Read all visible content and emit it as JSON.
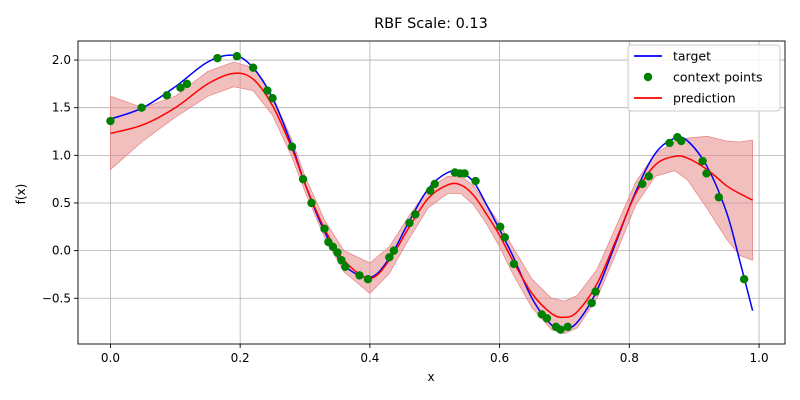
{
  "chart_data": {
    "type": "line",
    "title": "RBF Scale: 0.13",
    "xlabel": "x",
    "ylabel": "f(x)",
    "xlim": [
      -0.05,
      1.04
    ],
    "ylim": [
      -0.98,
      2.2
    ],
    "xticks": [
      0.0,
      0.2,
      0.4,
      0.6,
      0.8,
      1.0
    ],
    "xtick_labels": [
      "0.0",
      "0.2",
      "0.4",
      "0.6",
      "0.8",
      "1.0"
    ],
    "yticks": [
      -0.5,
      0.0,
      0.5,
      1.0,
      1.5,
      2.0
    ],
    "ytick_labels": [
      "−0.5",
      "0.0",
      "0.5",
      "1.0",
      "1.5",
      "2.0"
    ],
    "grid": true,
    "legend_position": "top-right",
    "colors": {
      "target": "#0000ff",
      "context": "#008000",
      "prediction": "#ff0000",
      "band": "#e88a8a"
    },
    "series": [
      {
        "name": "target",
        "kind": "line",
        "x": [
          0.0,
          0.05,
          0.1,
          0.15,
          0.19,
          0.22,
          0.25,
          0.28,
          0.3,
          0.33,
          0.36,
          0.4,
          0.43,
          0.46,
          0.49,
          0.52,
          0.54,
          0.56,
          0.58,
          0.6,
          0.62,
          0.65,
          0.68,
          0.7,
          0.72,
          0.75,
          0.78,
          0.81,
          0.84,
          0.87,
          0.89,
          0.92,
          0.95,
          0.97,
          0.99
        ],
        "y": [
          1.38,
          1.5,
          1.72,
          1.98,
          2.05,
          1.92,
          1.6,
          1.1,
          0.7,
          0.2,
          -0.15,
          -0.28,
          -0.08,
          0.3,
          0.65,
          0.82,
          0.82,
          0.72,
          0.48,
          0.22,
          -0.05,
          -0.5,
          -0.78,
          -0.82,
          -0.75,
          -0.42,
          0.1,
          0.62,
          1.02,
          1.18,
          1.15,
          0.88,
          0.4,
          -0.1,
          -0.63
        ]
      },
      {
        "name": "prediction",
        "kind": "line",
        "x": [
          0.0,
          0.05,
          0.1,
          0.15,
          0.19,
          0.22,
          0.25,
          0.28,
          0.3,
          0.33,
          0.36,
          0.4,
          0.43,
          0.46,
          0.49,
          0.52,
          0.54,
          0.56,
          0.58,
          0.6,
          0.62,
          0.65,
          0.68,
          0.7,
          0.72,
          0.75,
          0.78,
          0.81,
          0.84,
          0.87,
          0.89,
          0.92,
          0.95,
          0.97,
          0.99
        ],
        "y": [
          1.23,
          1.32,
          1.5,
          1.75,
          1.86,
          1.8,
          1.52,
          1.07,
          0.7,
          0.23,
          -0.1,
          -0.29,
          -0.1,
          0.24,
          0.55,
          0.69,
          0.69,
          0.58,
          0.38,
          0.16,
          -0.1,
          -0.45,
          -0.66,
          -0.7,
          -0.64,
          -0.35,
          0.12,
          0.6,
          0.9,
          0.99,
          0.97,
          0.85,
          0.68,
          0.6,
          0.53
        ]
      }
    ],
    "band": {
      "name": "uncertainty",
      "x": [
        0.0,
        0.05,
        0.1,
        0.15,
        0.19,
        0.22,
        0.25,
        0.28,
        0.3,
        0.33,
        0.36,
        0.4,
        0.43,
        0.46,
        0.49,
        0.52,
        0.54,
        0.56,
        0.58,
        0.6,
        0.62,
        0.65,
        0.68,
        0.7,
        0.72,
        0.75,
        0.78,
        0.81,
        0.84,
        0.87,
        0.89,
        0.92,
        0.95,
        0.97,
        0.99
      ],
      "lower": [
        0.85,
        1.15,
        1.4,
        1.62,
        1.72,
        1.68,
        1.42,
        0.98,
        0.62,
        0.14,
        -0.22,
        -0.45,
        -0.24,
        0.12,
        0.45,
        0.6,
        0.6,
        0.48,
        0.28,
        0.04,
        -0.24,
        -0.6,
        -0.83,
        -0.87,
        -0.81,
        -0.5,
        -0.02,
        0.48,
        0.78,
        0.84,
        0.74,
        0.44,
        0.12,
        -0.05,
        -0.1
      ],
      "upper": [
        1.62,
        1.5,
        1.62,
        1.88,
        1.98,
        1.92,
        1.62,
        1.16,
        0.78,
        0.32,
        0.0,
        -0.13,
        0.04,
        0.36,
        0.65,
        0.78,
        0.78,
        0.68,
        0.48,
        0.28,
        0.04,
        -0.3,
        -0.5,
        -0.53,
        -0.47,
        -0.2,
        0.26,
        0.72,
        1.02,
        1.14,
        1.18,
        1.2,
        1.15,
        1.14,
        1.16
      ]
    },
    "context_points": {
      "name": "context points",
      "x": [
        0.0,
        0.048,
        0.087,
        0.108,
        0.118,
        0.165,
        0.195,
        0.22,
        0.242,
        0.25,
        0.28,
        0.297,
        0.31,
        0.33,
        0.336,
        0.343,
        0.35,
        0.356,
        0.362,
        0.384,
        0.397,
        0.43,
        0.437,
        0.461,
        0.47,
        0.493,
        0.5,
        0.531,
        0.539,
        0.546,
        0.563,
        0.601,
        0.608,
        0.622,
        0.665,
        0.673,
        0.687,
        0.694,
        0.705,
        0.742,
        0.748,
        0.82,
        0.83,
        0.862,
        0.874,
        0.88,
        0.913,
        0.919,
        0.938,
        0.977
      ],
      "y": [
        1.36,
        1.5,
        1.63,
        1.71,
        1.75,
        2.02,
        2.04,
        1.92,
        1.68,
        1.6,
        1.09,
        0.75,
        0.5,
        0.23,
        0.09,
        0.04,
        -0.02,
        -0.1,
        -0.17,
        -0.26,
        -0.3,
        -0.07,
        0.0,
        0.29,
        0.38,
        0.63,
        0.7,
        0.82,
        0.81,
        0.81,
        0.73,
        0.25,
        0.14,
        -0.14,
        -0.67,
        -0.71,
        -0.8,
        -0.83,
        -0.8,
        -0.55,
        -0.43,
        0.7,
        0.78,
        1.13,
        1.19,
        1.15,
        0.94,
        0.81,
        0.56,
        -0.3
      ]
    },
    "legend": [
      "target",
      "context points",
      "prediction"
    ]
  }
}
